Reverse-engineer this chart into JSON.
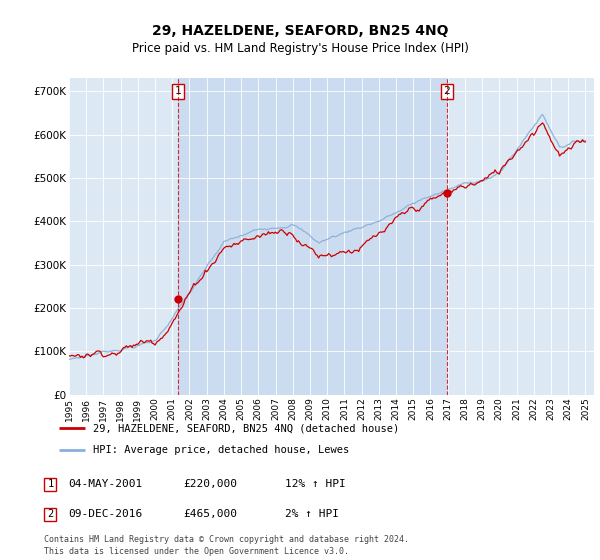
{
  "title": "29, HAZELDENE, SEAFORD, BN25 4NQ",
  "subtitle": "Price paid vs. HM Land Registry's House Price Index (HPI)",
  "ylabel_ticks": [
    "£0",
    "£100K",
    "£200K",
    "£300K",
    "£400K",
    "£500K",
    "£600K",
    "£700K"
  ],
  "ytick_vals": [
    0,
    100000,
    200000,
    300000,
    400000,
    500000,
    600000,
    700000
  ],
  "ylim": [
    0,
    730000
  ],
  "sale1_year": 2001.34,
  "sale2_year": 2016.94,
  "sale1_price": 220000,
  "sale2_price": 465000,
  "sale1_label": "1",
  "sale2_label": "2",
  "line_color_price": "#cc0000",
  "line_color_hpi": "#89b0d8",
  "bg_color": "#dce9f5",
  "shade_color": "#ccdcf0",
  "annotation_box_color": "#cc0000",
  "legend_label1": "29, HAZELDENE, SEAFORD, BN25 4NQ (detached house)",
  "legend_label2": "HPI: Average price, detached house, Lewes",
  "table_row1": [
    "1",
    "04-MAY-2001",
    "£220,000",
    "12% ↑ HPI"
  ],
  "table_row2": [
    "2",
    "09-DEC-2016",
    "£465,000",
    "2% ↑ HPI"
  ],
  "footnote": "Contains HM Land Registry data © Crown copyright and database right 2024.\nThis data is licensed under the Open Government Licence v3.0.",
  "xstart_year": 1995,
  "xend_year": 2025
}
